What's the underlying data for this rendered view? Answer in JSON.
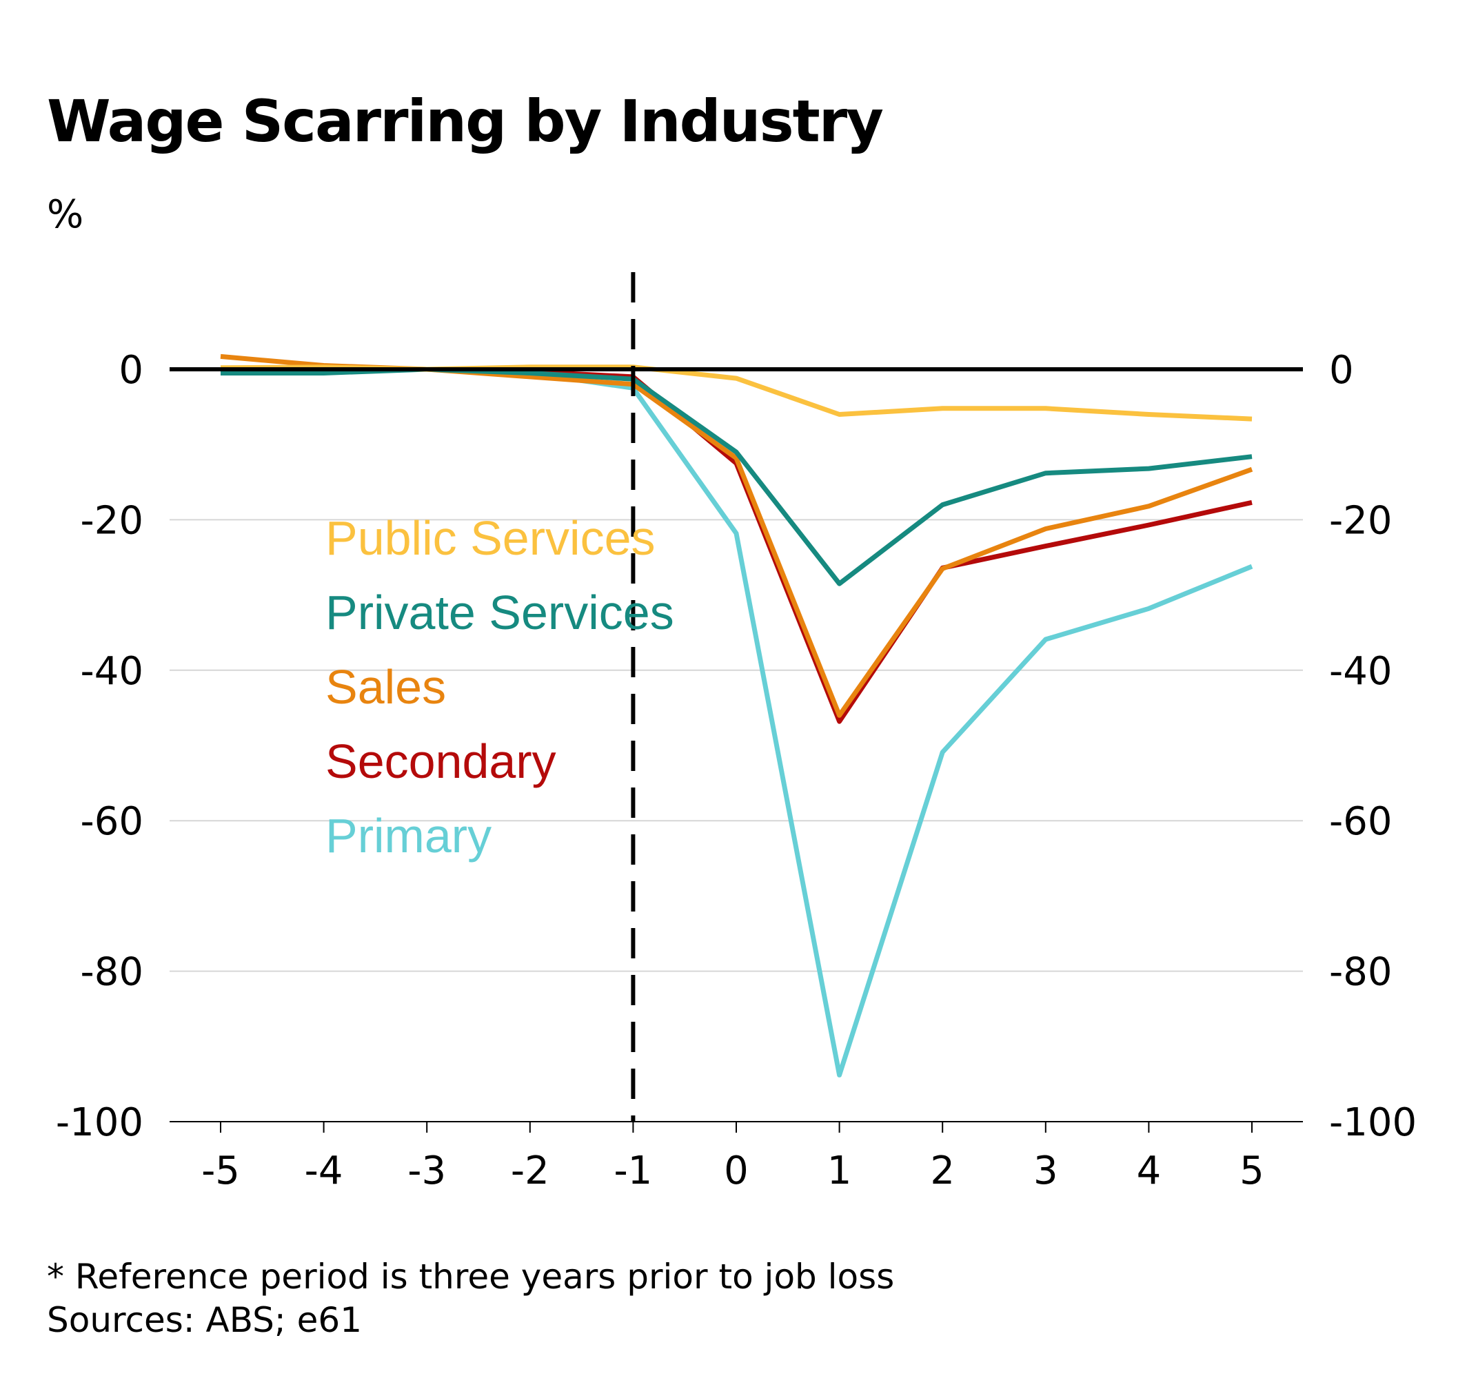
{
  "chart_data": {
    "type": "line",
    "title": "Wage Scarring by Industry",
    "ylabel": "%",
    "xlabel": "",
    "x": [
      -5,
      -4,
      -3,
      -2,
      -1,
      0,
      1,
      2,
      3,
      4,
      5
    ],
    "x_tick_labels": [
      "-5",
      "-4",
      "-3",
      "-2",
      "-1",
      "0",
      "1",
      "2",
      "3",
      "4",
      "5"
    ],
    "ylim": [
      -100,
      10
    ],
    "y_ticks": [
      0,
      -20,
      -40,
      -60,
      -80,
      -100
    ],
    "y_tick_labels": [
      "0",
      "-20",
      "-40",
      "-60",
      "-80",
      "-100"
    ],
    "axes": "left and right y axes mirrored",
    "grid": "horizontal",
    "reference_line_x": -1,
    "series": [
      {
        "name": "Public Services",
        "color": "#FBC13F",
        "values": [
          0.2,
          0.3,
          0.0,
          0.3,
          0.3,
          -1.2,
          -6.0,
          -5.2,
          -5.2,
          -6.0,
          -6.6
        ]
      },
      {
        "name": "Private Services",
        "color": "#168A80",
        "values": [
          -0.5,
          -0.5,
          0.0,
          -0.5,
          -1.3,
          -11.0,
          -28.5,
          -18.0,
          -13.8,
          -13.2,
          -11.6
        ]
      },
      {
        "name": "Sales",
        "color": "#E8840F",
        "values": [
          1.7,
          0.5,
          0.0,
          -1.0,
          -2.0,
          -11.8,
          -46.0,
          -26.5,
          -21.2,
          -18.2,
          -13.3
        ]
      },
      {
        "name": "Secondary",
        "color": "#B40A0A",
        "values": [
          0.0,
          0.0,
          0.0,
          -0.3,
          -1.0,
          -12.5,
          -46.8,
          -26.4,
          -23.5,
          -20.7,
          -17.7
        ]
      },
      {
        "name": "Primary",
        "color": "#66CFD6",
        "values": [
          0.0,
          0.0,
          0.0,
          -0.5,
          -2.5,
          -21.8,
          -93.8,
          -50.9,
          -35.9,
          -31.8,
          -26.2
        ]
      }
    ],
    "legend": "inside, upper left of plot"
  },
  "footnotes": [
    "* Reference period is three years prior to job loss",
    "Sources: ABS; e61"
  ]
}
